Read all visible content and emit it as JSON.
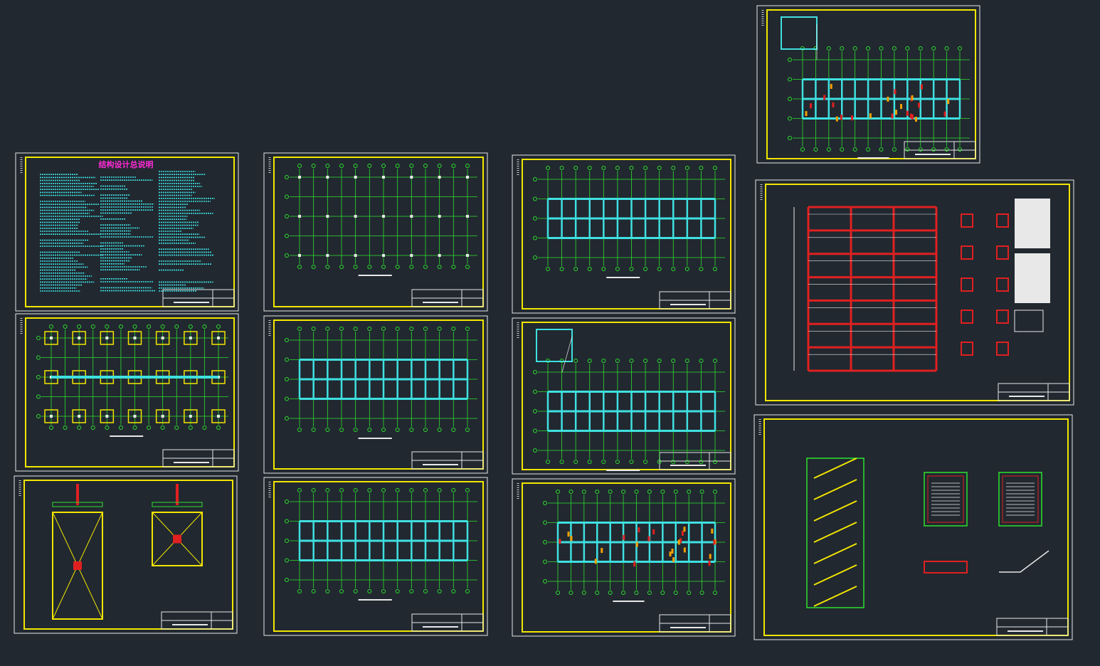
{
  "sheets": [
    {
      "title": "结构设计总说明"
    }
  ]
}
